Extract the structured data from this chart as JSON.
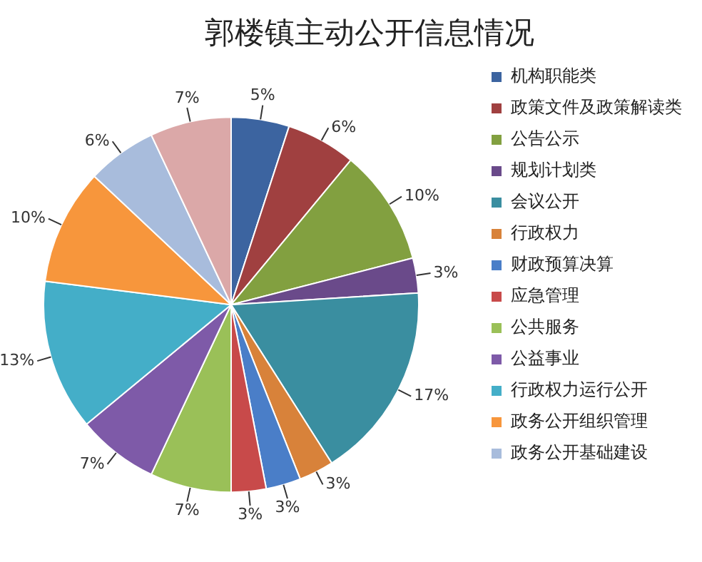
{
  "chart_data": {
    "type": "pie",
    "title": "郭楼镇主动公开信息情况",
    "categories": [
      "机构职能类",
      "政策文件及政策解读类",
      "公告公示",
      "规划计划类",
      "会议公开",
      "行政权力",
      "财政预算决算",
      "应急管理",
      "公共服务",
      "公益事业",
      "行政权力运行公开",
      "政务公开组织管理",
      "政务公开基础建设",
      null
    ],
    "values": [
      5,
      6,
      10,
      3,
      17,
      3,
      3,
      3,
      7,
      7,
      13,
      10,
      6,
      7
    ],
    "value_labels": [
      "5%",
      "6%",
      "10%",
      "3%",
      "17%",
      "3%",
      "3%",
      "3%",
      "7%",
      "7%",
      "13%",
      "10%",
      "6%",
      "7%"
    ],
    "colors": [
      "#3c64a0",
      "#a04040",
      "#82a040",
      "#6a4a8a",
      "#3a8ea0",
      "#d8823a",
      "#4a7ec8",
      "#c84a4a",
      "#9ac058",
      "#7e5aa8",
      "#44aec8",
      "#f7963c",
      "#a8bcdc",
      "#dba8a8"
    ],
    "legend": "right"
  }
}
